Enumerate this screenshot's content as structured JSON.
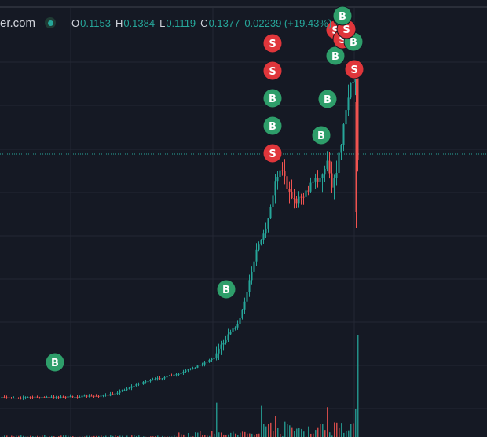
{
  "header": {
    "site": "er.com",
    "ohlc": [
      {
        "key": "O",
        "value": "0.1153"
      },
      {
        "key": "H",
        "value": "0.1384"
      },
      {
        "key": "L",
        "value": "0.1119"
      },
      {
        "key": "C",
        "value": "0.1377"
      }
    ],
    "change": "0.02239 (+19.43%)"
  },
  "colors": {
    "background": "#151924",
    "grid": "#232734",
    "up": "#26a69a",
    "down": "#ef5350",
    "buy_marker": "#2e9e6a",
    "sell_marker": "#e0363b"
  },
  "chart_data": {
    "type": "candlestick",
    "grid": true,
    "last_close": 0.1377,
    "markers": [
      {
        "label": "B",
        "type": "buy"
      },
      {
        "label": "B",
        "type": "buy"
      },
      {
        "label": "S",
        "type": "sell"
      },
      {
        "label": "B",
        "type": "buy"
      },
      {
        "label": "B",
        "type": "buy"
      },
      {
        "label": "S",
        "type": "sell"
      },
      {
        "label": "S",
        "type": "sell"
      },
      {
        "label": "B",
        "type": "buy"
      },
      {
        "label": "B",
        "type": "buy"
      },
      {
        "label": "B",
        "type": "buy"
      },
      {
        "label": "S",
        "type": "sell"
      },
      {
        "label": "S",
        "type": "sell"
      },
      {
        "label": "B",
        "type": "buy"
      },
      {
        "label": "S",
        "type": "sell"
      },
      {
        "label": "B",
        "type": "buy"
      },
      {
        "label": "S",
        "type": "sell"
      },
      {
        "label": "B",
        "type": "buy"
      }
    ]
  }
}
